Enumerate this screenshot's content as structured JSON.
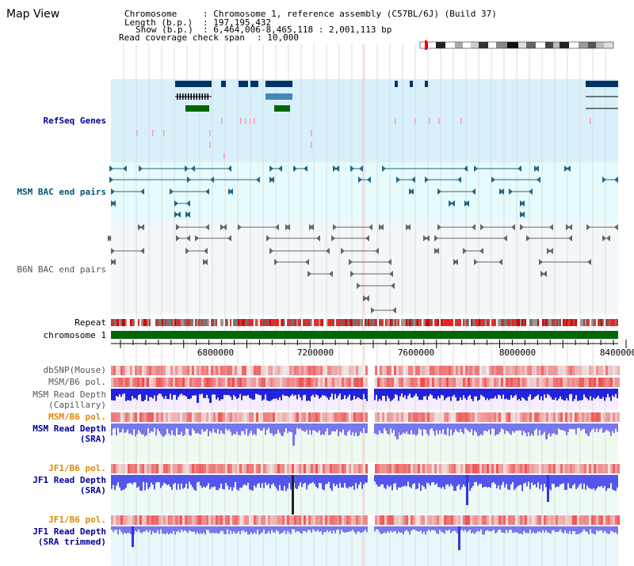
{
  "title": "Map View",
  "info": {
    "chromosome_label": "Chromosome",
    "chromosome_value": "Chromosome 1, reference assembly (C57BL/6J) (Build 37)",
    "length_label": "Length (b.p.)",
    "length_value": "197,195,432",
    "show_label": "Show (b.p.)",
    "show_value": "6,464,006-8,465,118 : 2,001,113 bp",
    "coverage_label": "Read coverage check span",
    "coverage_value": "10,000"
  },
  "tracks": {
    "refseq": "RefSeq Genes",
    "msm_bac": "MSM BAC end pairs",
    "b6n_bac": "B6N BAC end pairs",
    "repeat": "Repeat",
    "chromosome": "chromosome 1",
    "dbsnp": "dbSNP(Mouse)",
    "msm_b6_pol_1": "MSM/B6 pol.",
    "msm_depth_cap_1": "MSM Read Depth",
    "msm_depth_cap_2": "(Capillary)",
    "msm_b6_pol_2": "MSM/B6 pol.",
    "msm_depth_sra_1": "MSM Read Depth",
    "msm_depth_sra_2": "(SRA)",
    "jf1_b6_pol_1": "JF1/B6 pol.",
    "jf1_depth_sra_1": "JF1 Read Depth",
    "jf1_depth_sra_2": "(SRA)",
    "jf1_b6_pol_2": "JF1/B6 pol.",
    "jf1_depth_trim_1": "JF1 Read Depth",
    "jf1_depth_trim_2": "(SRA trimmed)"
  },
  "axis": {
    "ticks": [
      "6800000",
      "7200000",
      "7600000",
      "8000000",
      "8400000"
    ]
  },
  "colors": {
    "refseq_bg": "#d8f0fa",
    "bac_bg": "#e6fbfb",
    "b6n_bg": "#f4f7f9",
    "gene_dark": "#003366",
    "gene_mid": "#4488bb",
    "gene_green": "#006600",
    "chrom_green": "#006600",
    "depth_blue": "#2222dd",
    "depth_light": "#7777ee",
    "pol_red": "#ee2222"
  }
}
